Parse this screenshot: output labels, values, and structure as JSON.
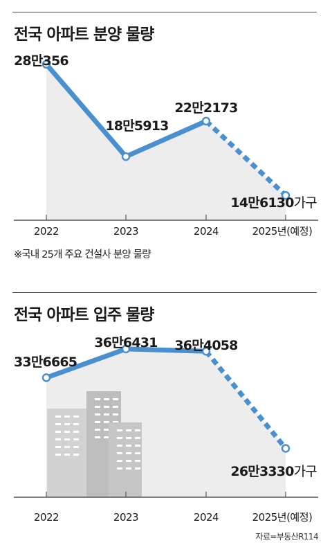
{
  "colors": {
    "line": "#4a8fce",
    "area": "#ededed",
    "axis": "#555555",
    "building_dark": "#bdbdbd",
    "building_light": "#d2d2d2"
  },
  "chart_data": [
    {
      "type": "line",
      "title": "전국 아파트 분양 물량",
      "categories": [
        "2022",
        "2023",
        "2024",
        "2025년(예정)"
      ],
      "values": [
        280356,
        185913,
        222173,
        146130
      ],
      "value_labels": [
        "28만356",
        "18만5913",
        "22만2173",
        "14만6130"
      ],
      "unit": "가구",
      "projected_from_index": 2,
      "ylim": [
        130000,
        300000
      ],
      "note": "※국내 25개 주요 건설사 분양 물량",
      "grid": false
    },
    {
      "type": "line",
      "title": "전국 아파트 입주 물량",
      "categories": [
        "2022",
        "2023",
        "2024",
        "2025년(예정)"
      ],
      "values": [
        336665,
        366431,
        364058,
        263330
      ],
      "value_labels": [
        "33만6665",
        "36만6431",
        "36만4058",
        "26만3330"
      ],
      "unit": "가구",
      "projected_from_index": 2,
      "ylim": [
        240000,
        375000
      ],
      "grid": false
    }
  ],
  "source": "자료=부동산R114"
}
